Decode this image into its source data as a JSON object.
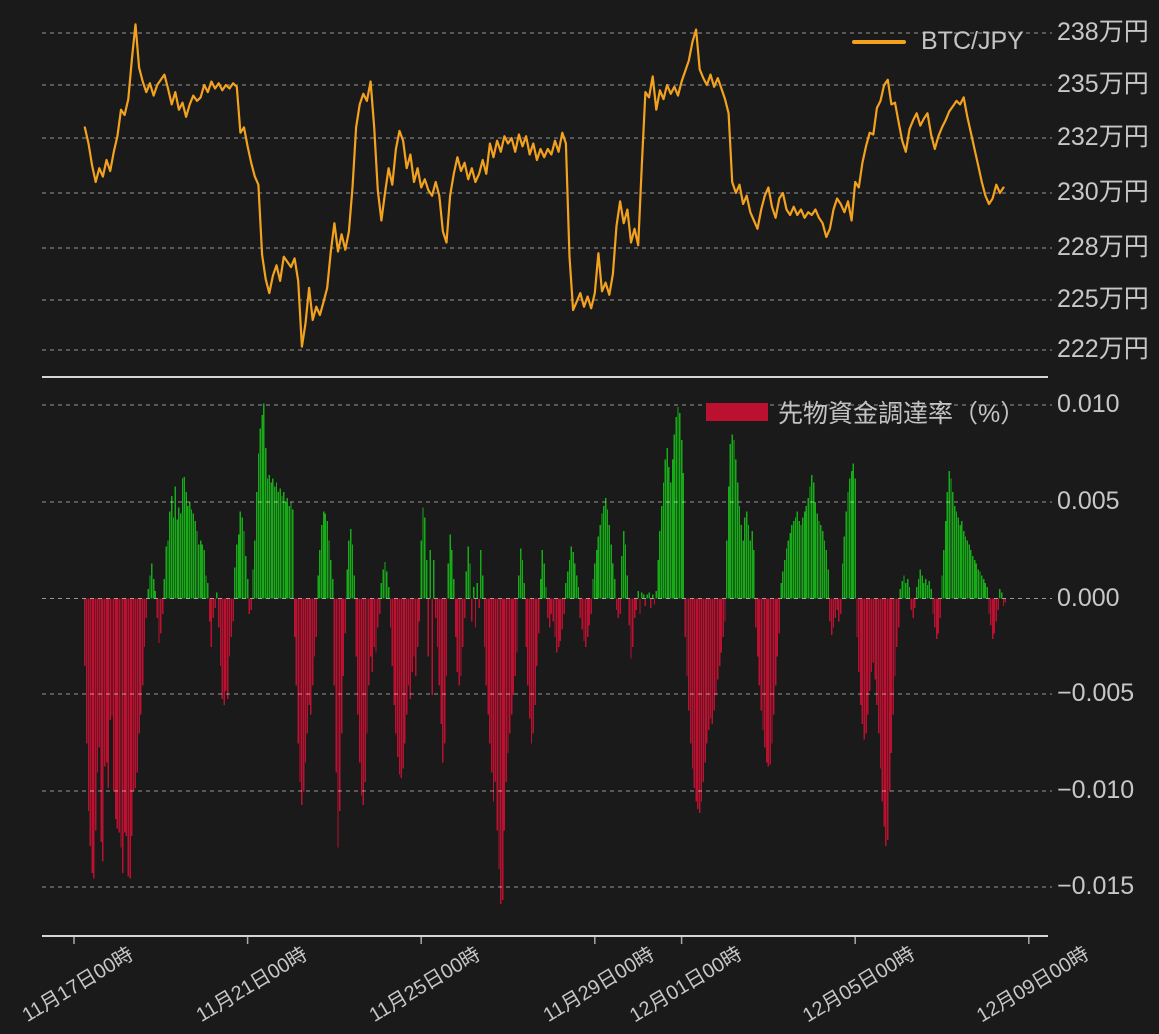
{
  "page": {
    "background": "#1a1a1a",
    "grid_color": "rgba(255,255,255,0.55)",
    "axis_line_color": "#d5d5d5",
    "text_color": "#c7c7c7"
  },
  "top_chart": {
    "legend": {
      "label": "BTC/JPY",
      "color": "#f2a21f"
    },
    "y_ticks": [
      {
        "label": "238万円",
        "value": 238
      },
      {
        "label": "235万円",
        "value": 235
      },
      {
        "label": "232万円",
        "value": 232
      },
      {
        "label": "230万円",
        "value": 230
      },
      {
        "label": "228万円",
        "value": 228
      },
      {
        "label": "225万円",
        "value": 225
      },
      {
        "label": "222万円",
        "value": 222
      }
    ]
  },
  "bottom_chart": {
    "legend": {
      "label": "先物資金調達率（%）",
      "color": "#bb1030"
    },
    "positive_color": "#18ab18",
    "negative_color": "#bb1030",
    "y_ticks": [
      {
        "label": "0.010",
        "value": 0.01
      },
      {
        "label": "0.005",
        "value": 0.005
      },
      {
        "label": "0.000",
        "value": 0.0
      },
      {
        "label": "−0.005",
        "value": -0.005
      },
      {
        "label": "−0.010",
        "value": -0.01
      },
      {
        "label": "−0.015",
        "value": -0.015
      }
    ]
  },
  "x_axis": {
    "labels": [
      "11月17日00時",
      "11月21日00時",
      "11月25日00時",
      "11月29日00時",
      "12月01日00時",
      "12月05日00時",
      "12月09日00時"
    ],
    "tick_hours": [
      0,
      96,
      192,
      288,
      336,
      432,
      528
    ]
  },
  "chart_data": [
    {
      "type": "line",
      "name": "BTC/JPY",
      "unit": "万円",
      "x_epoch": "11月17日00時",
      "x_start_hour": 6,
      "x_step_hours": 2,
      "y_axis_ticks": [
        238,
        235,
        232,
        230,
        228,
        225,
        222
      ],
      "values": [
        232.6,
        231.8,
        231.0,
        230.4,
        230.9,
        230.6,
        231.2,
        230.8,
        231.5,
        232.1,
        233.6,
        233.3,
        234.2,
        236.5,
        238.5,
        236.0,
        235.2,
        234.6,
        235.1,
        234.4,
        235.0,
        235.3,
        235.6,
        234.8,
        233.9,
        234.6,
        233.6,
        234.0,
        233.2,
        233.9,
        234.4,
        234.1,
        234.3,
        235.0,
        234.6,
        235.2,
        234.8,
        235.1,
        234.7,
        235.0,
        234.8,
        235.1,
        234.9,
        232.3,
        232.6,
        231.7,
        231.1,
        230.6,
        230.3,
        227.6,
        226.2,
        225.4,
        226.4,
        227.0,
        226.1,
        227.5,
        227.2,
        226.9,
        227.4,
        226.1,
        222.2,
        223.6,
        225.7,
        223.8,
        224.6,
        224.1,
        224.9,
        225.7,
        227.8,
        228.9,
        227.8,
        228.5,
        227.9,
        228.6,
        230.2,
        232.6,
        233.9,
        234.5,
        234.1,
        235.2,
        232.6,
        230.1,
        229.0,
        230.0,
        230.9,
        230.3,
        231.6,
        232.4,
        231.9,
        230.9,
        231.4,
        230.4,
        230.9,
        230.2,
        230.5,
        230.1,
        229.9,
        230.4,
        229.9,
        228.6,
        228.2,
        229.9,
        230.7,
        231.3,
        230.8,
        231.1,
        230.5,
        230.9,
        230.4,
        230.7,
        231.2,
        230.7,
        231.8,
        231.3,
        231.9,
        231.5,
        232.1,
        231.8,
        232.0,
        231.5,
        232.2,
        231.7,
        232.1,
        231.4,
        231.8,
        231.2,
        231.6,
        231.3,
        231.6,
        231.4,
        231.9,
        231.5,
        232.3,
        231.8,
        227.5,
        224.4,
        224.9,
        225.4,
        224.6,
        225.2,
        224.5,
        225.4,
        227.7,
        225.5,
        226.0,
        225.3,
        226.5,
        228.8,
        229.7,
        228.9,
        229.4,
        228.2,
        228.7,
        228.1,
        231.0,
        234.6,
        234.3,
        235.5,
        233.6,
        234.7,
        234.2,
        235.0,
        234.5,
        234.9,
        234.4,
        235.2,
        235.8,
        236.4,
        237.5,
        238.2,
        235.9,
        235.4,
        235.0,
        235.6,
        234.9,
        235.4,
        234.8,
        234.2,
        233.4,
        230.4,
        230.0,
        230.3,
        229.6,
        229.9,
        229.3,
        229.0,
        228.7,
        229.4,
        229.9,
        230.2,
        229.5,
        229.1,
        229.8,
        230.0,
        229.4,
        229.2,
        229.5,
        229.2,
        229.4,
        229.1,
        229.3,
        229.2,
        229.4,
        229.1,
        228.9,
        228.4,
        228.7,
        229.4,
        229.8,
        229.6,
        229.3,
        229.7,
        229.0,
        230.4,
        230.2,
        231.1,
        231.7,
        232.3,
        232.2,
        233.7,
        234.1,
        235.0,
        235.3,
        233.9,
        234.0,
        232.9,
        231.9,
        231.5,
        232.5,
        233.0,
        233.4,
        232.7,
        233.1,
        233.4,
        232.2,
        231.6,
        232.1,
        232.6,
        233.0,
        233.5,
        233.8,
        234.1,
        233.9,
        234.3,
        233.2,
        232.3,
        231.6,
        231.0,
        230.4,
        229.9,
        229.6,
        229.8,
        230.3,
        230.0,
        230.2
      ]
    },
    {
      "type": "bar",
      "name": "先物資金調達率（%）",
      "value_scale": 0.0001,
      "x_epoch": "11月17日00時",
      "x_start_hour": 6,
      "x_step_hours": 1,
      "y_axis_ticks": [
        0.01,
        0.005,
        0.0,
        -0.005,
        -0.01,
        -0.015
      ],
      "values": [
        -35,
        -75,
        -110,
        -128,
        -142,
        -145,
        -120,
        -90,
        -77,
        -126,
        -136,
        -87,
        -85,
        -98,
        -63,
        -61,
        -100,
        -114,
        -119,
        -121,
        -129,
        -142,
        -121,
        -123,
        -144,
        -145,
        -123,
        -100,
        -98,
        -90,
        -70,
        -60,
        -45,
        -25,
        -10,
        5,
        12,
        18,
        10,
        4,
        -10,
        -23,
        -18,
        -8,
        10,
        27,
        30,
        45,
        53,
        42,
        58,
        41,
        47,
        44,
        62,
        63,
        55,
        48,
        50,
        46,
        44,
        40,
        35,
        28,
        30,
        28,
        25,
        12,
        8,
        -12,
        -25,
        -10,
        -5,
        3,
        -15,
        -35,
        -52,
        -55,
        -48,
        -52,
        -30,
        -20,
        -12,
        16,
        28,
        33,
        45,
        42,
        35,
        22,
        10,
        -8,
        -6,
        15,
        30,
        55,
        75,
        88,
        95,
        101,
        78,
        62,
        64,
        60,
        62,
        58,
        60,
        55,
        57,
        53,
        55,
        50,
        52,
        48,
        50,
        46,
        -20,
        -45,
        -75,
        -95,
        -107,
        -100,
        -85,
        -70,
        -55,
        -60,
        -45,
        -30,
        -20,
        12,
        25,
        38,
        45,
        44,
        40,
        30,
        20,
        10,
        -45,
        -90,
        -129,
        -110,
        -70,
        -40,
        -18,
        15,
        30,
        36,
        28,
        12,
        -30,
        -60,
        -85,
        -102,
        -107,
        -95,
        -70,
        -45,
        -30,
        -38,
        -25,
        -28,
        -15,
        -8,
        8,
        15,
        19,
        14,
        6,
        -15,
        -35,
        -55,
        -70,
        -82,
        -91,
        -93,
        -88,
        -75,
        -60,
        -45,
        -52,
        -38,
        -30,
        -40,
        -25,
        -12,
        30,
        47,
        42,
        20,
        -30,
        25,
        -50,
        20,
        -10,
        -25,
        -45,
        -65,
        -85,
        -75,
        -40,
        18,
        33,
        25,
        10,
        -20,
        -38,
        -45,
        -40,
        -25,
        -10,
        14,
        27,
        18,
        -12,
        6,
        -15,
        8,
        -5,
        25,
        12,
        -25,
        -45,
        -60,
        -75,
        -90,
        -105,
        -95,
        -120,
        -140,
        -158,
        -156,
        -120,
        -95,
        -80,
        -70,
        -60,
        -50,
        -40,
        -28,
        12,
        26,
        20,
        8,
        -25,
        -45,
        -62,
        -75,
        -70,
        -55,
        -35,
        -18,
        10,
        25,
        18,
        6,
        -10,
        -15,
        -8,
        -12,
        -20,
        -28,
        -25,
        -22,
        -16,
        -8,
        8,
        14,
        20,
        27,
        24,
        18,
        12,
        6,
        -10,
        -16,
        -22,
        -25,
        -20,
        -14,
        -8,
        10,
        18,
        25,
        32,
        38,
        44,
        48,
        52,
        46,
        38,
        28,
        18,
        10,
        -6,
        -10,
        -8,
        22,
        35,
        28,
        12,
        -14,
        -31,
        -25,
        -10,
        -6,
        4,
        -8,
        3,
        2,
        -4,
        2,
        3,
        -5,
        2,
        -3,
        4,
        20,
        35,
        48,
        60,
        72,
        78,
        68,
        60,
        72,
        85,
        94,
        99,
        96,
        82,
        65,
        -20,
        -40,
        -58,
        -75,
        -88,
        -98,
        -105,
        -109,
        -111,
        -105,
        -95,
        -85,
        -75,
        -68,
        -62,
        -65,
        -58,
        -50,
        -42,
        -35,
        -28,
        -20,
        -12,
        30,
        58,
        80,
        85,
        82,
        72,
        60,
        48,
        38,
        30,
        42,
        45,
        38,
        30,
        35,
        25,
        -15,
        -30,
        -45,
        -58,
        -68,
        -77,
        -85,
        -87,
        -86,
        -75,
        -60,
        -45,
        -30,
        -18,
        8,
        14,
        20,
        26,
        30,
        34,
        38,
        40,
        42,
        45,
        40,
        38,
        42,
        45,
        48,
        52,
        58,
        64,
        60,
        50,
        44,
        40,
        38,
        35,
        30,
        25,
        15,
        -12,
        -19,
        -15,
        -10,
        -6,
        -12,
        -8,
        18,
        32,
        45,
        55,
        62,
        66,
        70,
        62,
        -20,
        -38,
        -55,
        -65,
        -73,
        -70,
        -60,
        -48,
        -38,
        -33,
        -42,
        -55,
        -70,
        -88,
        -105,
        -118,
        -128,
        -125,
        -100,
        -80,
        -60,
        -40,
        -25,
        -15,
        5,
        9,
        12,
        8,
        10,
        6,
        -6,
        -10,
        -5,
        6,
        10,
        15,
        12,
        8,
        10,
        7,
        9,
        5,
        -8,
        -15,
        -21,
        -18,
        -10,
        12,
        25,
        40,
        55,
        66,
        62,
        55,
        48,
        45,
        42,
        38,
        40,
        35,
        32,
        30,
        28,
        25,
        22,
        20,
        18,
        15,
        14,
        12,
        10,
        8,
        6,
        -8,
        -14,
        -21,
        -18,
        -12,
        -6,
        5,
        3,
        -4,
        -2
      ]
    }
  ]
}
